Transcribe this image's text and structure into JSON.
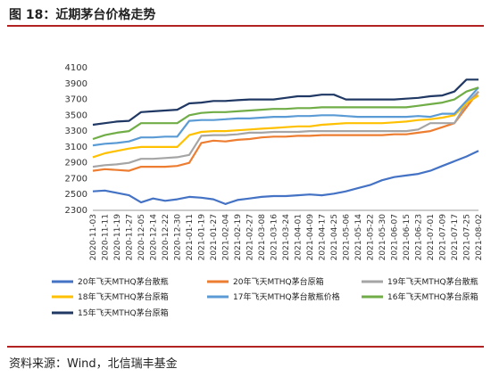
{
  "figure_label": "图 18：近期茅台价格走势",
  "source": "资料来源：Wind，北信瑞丰基金",
  "chart_data": {
    "type": "line",
    "title": "",
    "xlabel": "",
    "ylabel": "",
    "ylim": [
      2300,
      4100
    ],
    "yticks": [
      2300,
      2500,
      2700,
      2900,
      3100,
      3300,
      3500,
      3700,
      3900,
      4100
    ],
    "x": [
      "2020-11-03",
      "2020-11-11",
      "2020-11-19",
      "2020-11-27",
      "2020-12-07",
      "2020-12-15",
      "2020-12-23",
      "2020-12-31",
      "2021-01-11",
      "2021-01-19",
      "2021-01-27",
      "2021-02-04",
      "2021-02-19",
      "2021-02-27",
      "2021-03-08",
      "2021-03-16",
      "2021-03-24",
      "2021-04-01",
      "2021-04-09",
      "2021-04-17",
      "2021-04-25",
      "2021-05-06",
      "2021-05-14",
      "2021-05-22",
      "2021-05-30",
      "2021-06-07",
      "2021-06-15",
      "2021-06-23",
      "2021-07-01",
      "2021-07-09",
      "2021-07-17",
      "2021-07-25",
      "2021-08-02"
    ],
    "x_tick_labels": [
      "2020-11-03",
      "2020-11-11",
      "2020-11-19",
      "2020-11-27",
      "2020-12-05",
      "2020-12-14",
      "2020-12-22",
      "2020-12-30",
      "2021-01-11",
      "2021-01-19",
      "2021-01-27",
      "2021-02-04",
      "2021-02-19",
      "2021-02-27",
      "2021-03-08",
      "2021-03-16",
      "2021-03-24",
      "2021-04-01",
      "2021-04-09",
      "2021-04-17",
      "2021-04-25",
      "2021-05-06",
      "2021-05-14",
      "2021-05-22",
      "2021-05-30",
      "2021-06-07",
      "2021-06-15",
      "2021-06-23",
      "2021-07-01",
      "2021-07-09",
      "2021-07-17",
      "2021-07-25",
      "2021-08-02"
    ],
    "series": [
      {
        "name": "20年飞天MTHQ茅台散瓶",
        "color": "#4472c4",
        "values": [
          2540,
          2550,
          2520,
          2490,
          2400,
          2450,
          2420,
          2440,
          2470,
          2460,
          2440,
          2380,
          2430,
          2450,
          2470,
          2480,
          2480,
          2490,
          2500,
          2490,
          2510,
          2540,
          2580,
          2620,
          2680,
          2720,
          2740,
          2760,
          2800,
          2860,
          2920,
          2980,
          3050
        ]
      },
      {
        "name": "20年飞天MTHQ茅台原箱",
        "color": "#ed7d31",
        "values": [
          2800,
          2820,
          2810,
          2800,
          2850,
          2850,
          2850,
          2860,
          2900,
          3150,
          3180,
          3170,
          3190,
          3200,
          3220,
          3230,
          3230,
          3240,
          3240,
          3250,
          3250,
          3250,
          3250,
          3250,
          3250,
          3260,
          3260,
          3280,
          3300,
          3350,
          3400,
          3600,
          3800
        ]
      },
      {
        "name": "19年飞天MTHQ茅台散瓶",
        "color": "#a5a5a5",
        "values": [
          2850,
          2870,
          2880,
          2900,
          2950,
          2950,
          2960,
          2970,
          3000,
          3240,
          3250,
          3250,
          3260,
          3280,
          3280,
          3290,
          3290,
          3290,
          3300,
          3300,
          3300,
          3300,
          3300,
          3300,
          3300,
          3300,
          3300,
          3320,
          3400,
          3400,
          3400,
          3650,
          3800
        ]
      },
      {
        "name": "18年飞天MTHQ茅台原箱",
        "color": "#ffc000",
        "values": [
          2970,
          3020,
          3050,
          3080,
          3100,
          3100,
          3100,
          3100,
          3250,
          3290,
          3300,
          3300,
          3310,
          3320,
          3330,
          3340,
          3350,
          3360,
          3360,
          3380,
          3390,
          3400,
          3400,
          3400,
          3400,
          3410,
          3420,
          3440,
          3450,
          3470,
          3500,
          3650,
          3750
        ]
      },
      {
        "name": "17年飞天MTHQ茅台散瓶价格",
        "color": "#5b9bd5",
        "values": [
          3120,
          3140,
          3150,
          3170,
          3220,
          3220,
          3230,
          3230,
          3430,
          3440,
          3440,
          3450,
          3460,
          3460,
          3470,
          3480,
          3480,
          3490,
          3490,
          3500,
          3500,
          3490,
          3480,
          3480,
          3480,
          3480,
          3480,
          3490,
          3480,
          3520,
          3520,
          3680,
          3850
        ]
      },
      {
        "name": "16年飞天MTHQ茅台原箱",
        "color": "#70ad47",
        "values": [
          3200,
          3250,
          3280,
          3300,
          3400,
          3400,
          3400,
          3400,
          3500,
          3530,
          3540,
          3540,
          3550,
          3560,
          3570,
          3580,
          3580,
          3590,
          3590,
          3600,
          3600,
          3600,
          3600,
          3600,
          3600,
          3600,
          3600,
          3620,
          3640,
          3660,
          3700,
          3800,
          3850
        ]
      },
      {
        "name": "15年飞天MTHQ茅台原箱",
        "color": "#203864",
        "values": [
          3380,
          3400,
          3420,
          3430,
          3540,
          3550,
          3560,
          3570,
          3650,
          3660,
          3680,
          3680,
          3690,
          3700,
          3700,
          3700,
          3720,
          3740,
          3740,
          3760,
          3760,
          3700,
          3700,
          3700,
          3700,
          3700,
          3710,
          3720,
          3740,
          3750,
          3800,
          3950,
          3950
        ]
      }
    ],
    "legend_position": "bottom",
    "grid": true
  }
}
